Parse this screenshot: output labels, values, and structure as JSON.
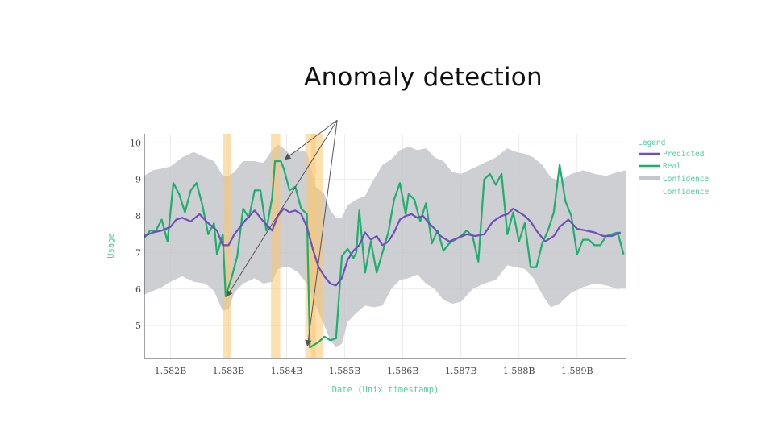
{
  "slide": {
    "title": "Anomaly detection"
  },
  "colors": {
    "predicted": "#6f4fb8",
    "real": "#1fae6e",
    "confidence": "#c4c7cb",
    "anomaly": "#fcc670",
    "label": "#4fd1a0",
    "arrow": "#555555"
  },
  "chart_data": {
    "type": "line",
    "title": "",
    "xlabel": "Date (Unix timestamp)",
    "ylabel": "Usage",
    "xlim": [
      1581.55,
      1589.85
    ],
    "ylim": [
      4.1,
      10.25
    ],
    "xunit_suffix": "B",
    "x_ticks": [
      1582,
      1583,
      1584,
      1585,
      1586,
      1587,
      1588,
      1589
    ],
    "x_tick_labels": [
      "1.582B",
      "1.583B",
      "1.584B",
      "1.585B",
      "1.586B",
      "1.587B",
      "1.588B",
      "1.589B"
    ],
    "y_ticks": [
      5,
      6,
      7,
      8,
      9,
      10
    ],
    "y_tick_labels": [
      "5",
      "6",
      "7",
      "8",
      "9",
      "10"
    ],
    "grid": true,
    "legend_position": "right",
    "legend": {
      "title": "Legend",
      "entries": [
        "Predicted",
        "Real",
        "Confidence",
        "Confidence"
      ]
    },
    "series": [
      {
        "name": "Predicted",
        "x": [
          1581.55,
          1581.7,
          1581.85,
          1582.0,
          1582.1,
          1582.2,
          1582.35,
          1582.5,
          1582.65,
          1582.8,
          1582.9,
          1583.0,
          1583.1,
          1583.2,
          1583.3,
          1583.45,
          1583.6,
          1583.75,
          1583.85,
          1583.95,
          1584.05,
          1584.15,
          1584.25,
          1584.35,
          1584.45,
          1584.55,
          1584.65,
          1584.75,
          1584.85,
          1584.95,
          1585.05,
          1585.15,
          1585.25,
          1585.35,
          1585.45,
          1585.55,
          1585.65,
          1585.75,
          1585.85,
          1585.95,
          1586.05,
          1586.15,
          1586.25,
          1586.35,
          1586.45,
          1586.55,
          1586.65,
          1586.8,
          1586.95,
          1587.1,
          1587.25,
          1587.4,
          1587.55,
          1587.7,
          1587.8,
          1587.9,
          1588.0,
          1588.1,
          1588.2,
          1588.3,
          1588.45,
          1588.6,
          1588.7,
          1588.85,
          1589.0,
          1589.15,
          1589.3,
          1589.45,
          1589.6,
          1589.75
        ],
        "y": [
          7.45,
          7.55,
          7.6,
          7.7,
          7.9,
          7.95,
          7.85,
          8.05,
          7.8,
          7.6,
          7.2,
          7.2,
          7.5,
          7.7,
          7.9,
          8.15,
          7.85,
          7.6,
          8.0,
          8.2,
          8.1,
          8.15,
          8.05,
          7.7,
          7.1,
          6.6,
          6.35,
          6.15,
          6.1,
          6.3,
          6.8,
          7.05,
          7.2,
          7.55,
          7.35,
          7.45,
          7.2,
          7.3,
          7.55,
          7.9,
          8.0,
          8.05,
          7.95,
          8.0,
          7.8,
          7.65,
          7.45,
          7.3,
          7.4,
          7.5,
          7.45,
          7.5,
          7.85,
          8.0,
          8.05,
          8.2,
          8.1,
          8.0,
          7.85,
          7.6,
          7.3,
          7.45,
          7.7,
          7.9,
          7.65,
          7.6,
          7.55,
          7.45,
          7.45,
          7.55
        ]
      },
      {
        "name": "Real",
        "x": [
          1581.55,
          1581.65,
          1581.75,
          1581.85,
          1581.95,
          1582.05,
          1582.15,
          1582.25,
          1582.35,
          1582.45,
          1582.55,
          1582.65,
          1582.75,
          1582.8,
          1582.9,
          1582.95,
          1583.05,
          1583.15,
          1583.25,
          1583.35,
          1583.45,
          1583.55,
          1583.65,
          1583.75,
          1583.8,
          1583.9,
          1583.95,
          1584.05,
          1584.15,
          1584.25,
          1584.35,
          1584.4,
          1584.45,
          1584.55,
          1584.65,
          1584.75,
          1584.85,
          1584.95,
          1585.05,
          1585.15,
          1585.2,
          1585.25,
          1585.35,
          1585.45,
          1585.55,
          1585.65,
          1585.75,
          1585.85,
          1585.95,
          1586.05,
          1586.1,
          1586.2,
          1586.3,
          1586.4,
          1586.5,
          1586.6,
          1586.7,
          1586.8,
          1586.9,
          1587.0,
          1587.1,
          1587.2,
          1587.3,
          1587.4,
          1587.5,
          1587.6,
          1587.7,
          1587.8,
          1587.9,
          1588.0,
          1588.1,
          1588.2,
          1588.3,
          1588.4,
          1588.5,
          1588.6,
          1588.7,
          1588.8,
          1588.9,
          1589.0,
          1589.1,
          1589.2,
          1589.3,
          1589.4,
          1589.5,
          1589.6,
          1589.7,
          1589.8
        ],
        "y": [
          7.4,
          7.6,
          7.6,
          7.9,
          7.3,
          8.9,
          8.6,
          8.1,
          8.7,
          8.9,
          8.3,
          7.5,
          7.8,
          6.95,
          7.5,
          5.8,
          6.3,
          6.9,
          8.2,
          7.95,
          8.7,
          8.7,
          7.6,
          8.5,
          9.5,
          9.5,
          9.3,
          8.7,
          8.8,
          8.2,
          8.05,
          4.4,
          4.45,
          4.55,
          4.7,
          4.6,
          4.65,
          6.9,
          7.1,
          6.85,
          7.0,
          8.15,
          6.45,
          7.3,
          6.45,
          7.0,
          7.55,
          8.45,
          8.9,
          8.05,
          8.6,
          8.45,
          7.85,
          8.35,
          7.25,
          7.6,
          7.05,
          7.25,
          7.35,
          7.45,
          7.6,
          7.45,
          6.75,
          9.0,
          9.15,
          8.85,
          9.15,
          7.5,
          8.1,
          7.3,
          7.8,
          6.6,
          6.6,
          7.25,
          7.6,
          8.1,
          9.4,
          8.4,
          8.0,
          6.95,
          7.35,
          7.35,
          7.2,
          7.2,
          7.45,
          7.5,
          7.55,
          6.95
        ]
      }
    ],
    "confidence_band": {
      "x": [
        1581.55,
        1581.7,
        1581.85,
        1582.0,
        1582.2,
        1582.4,
        1582.6,
        1582.75,
        1582.9,
        1583.0,
        1583.1,
        1583.25,
        1583.45,
        1583.6,
        1583.75,
        1583.85,
        1583.95,
        1584.05,
        1584.2,
        1584.35,
        1584.5,
        1584.65,
        1584.75,
        1584.85,
        1584.95,
        1585.05,
        1585.2,
        1585.35,
        1585.5,
        1585.65,
        1585.8,
        1585.95,
        1586.1,
        1586.25,
        1586.4,
        1586.55,
        1586.7,
        1586.85,
        1587.0,
        1587.2,
        1587.4,
        1587.6,
        1587.8,
        1587.95,
        1588.1,
        1588.25,
        1588.4,
        1588.55,
        1588.7,
        1588.9,
        1589.1,
        1589.3,
        1589.5,
        1589.7,
        1589.85
      ],
      "upper": [
        9.1,
        9.25,
        9.3,
        9.35,
        9.6,
        9.75,
        9.6,
        9.5,
        9.1,
        9.1,
        9.2,
        9.5,
        9.5,
        9.45,
        9.8,
        9.95,
        9.85,
        9.7,
        9.8,
        9.75,
        8.8,
        8.6,
        8.15,
        7.95,
        7.95,
        8.3,
        8.45,
        8.55,
        9.0,
        9.4,
        9.55,
        9.8,
        9.9,
        9.8,
        9.85,
        9.6,
        9.5,
        9.2,
        9.15,
        9.3,
        9.45,
        9.6,
        9.85,
        9.75,
        9.7,
        9.6,
        9.4,
        9.05,
        8.95,
        9.15,
        9.25,
        9.15,
        9.1,
        9.2,
        9.25
      ],
      "lower": [
        5.85,
        5.95,
        6.05,
        6.2,
        6.35,
        6.2,
        6.15,
        5.95,
        5.4,
        5.45,
        5.9,
        6.15,
        6.3,
        6.15,
        6.2,
        6.55,
        6.6,
        6.6,
        6.45,
        6.15,
        5.55,
        5.0,
        4.6,
        4.4,
        4.5,
        5.1,
        5.35,
        5.55,
        5.5,
        5.55,
        6.0,
        6.25,
        6.3,
        6.4,
        6.15,
        6.0,
        5.7,
        5.6,
        5.65,
        6.0,
        6.15,
        6.25,
        6.65,
        6.6,
        6.55,
        6.3,
        5.85,
        5.5,
        5.6,
        5.9,
        6.05,
        6.15,
        6.1,
        6.0,
        6.05
      ]
    },
    "anomaly_ranges": [
      [
        1582.9,
        1583.04
      ],
      [
        1583.73,
        1583.89
      ],
      [
        1584.32,
        1584.5
      ],
      [
        1584.42,
        1584.63
      ]
    ],
    "annotations": [
      {
        "from": [
          1584.87,
          10.62
        ],
        "to": [
          1583.97,
          9.55
        ]
      },
      {
        "from": [
          1584.87,
          10.62
        ],
        "to": [
          1582.97,
          5.8
        ]
      },
      {
        "from": [
          1584.87,
          10.62
        ],
        "to": [
          1584.36,
          4.45
        ]
      }
    ]
  }
}
